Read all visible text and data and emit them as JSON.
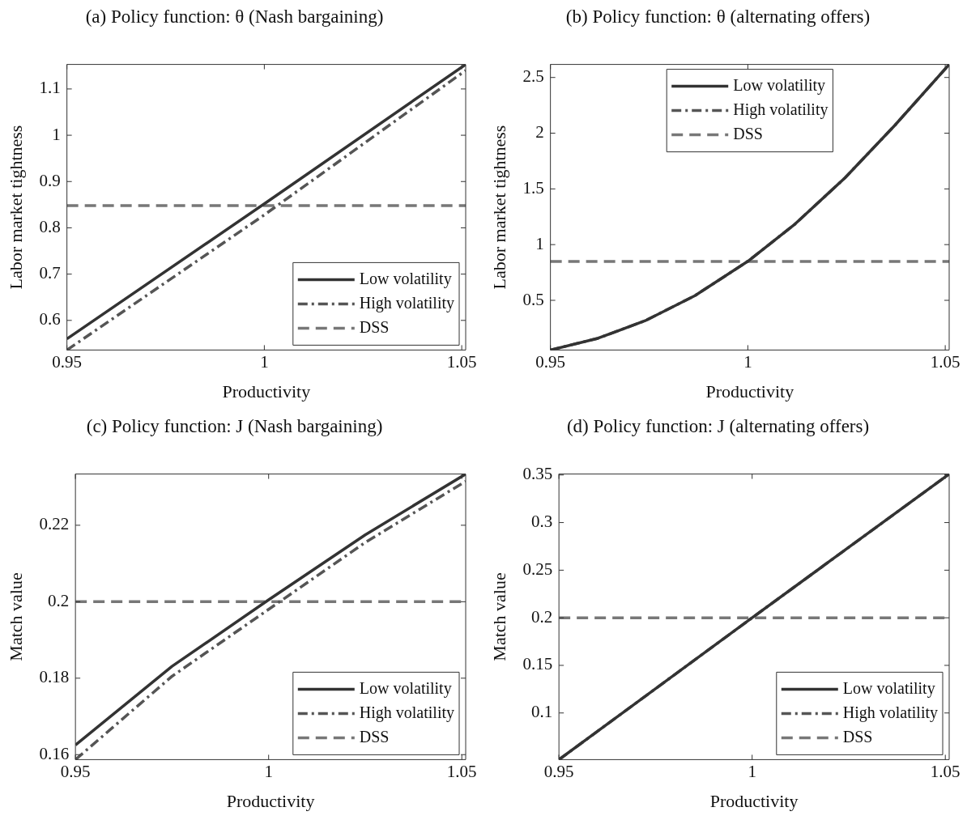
{
  "chart_data": [
    {
      "type": "line",
      "title": "(a) Policy function: θ (Nash bargaining)",
      "xlabel": "Productivity",
      "ylabel": "Labor market tightness",
      "xlim": [
        0.95,
        1.051
      ],
      "xticks": [
        0.95,
        1,
        1.05
      ],
      "ylim": [
        0.536,
        1.153
      ],
      "yticks": [
        0.6,
        0.7,
        0.8,
        0.9,
        1,
        1.1
      ],
      "legend": "bottom right",
      "grid": false,
      "series": [
        {
          "name": "Low volatility",
          "color": "#333333",
          "line_style": "solid",
          "x": [
            0.95,
            1,
            1.051
          ],
          "values": [
            0.56,
            0.852,
            1.153
          ]
        },
        {
          "name": "High volatility",
          "color": "#555555",
          "line_style": "dashdot",
          "x": [
            0.95,
            1,
            1.051
          ],
          "values": [
            0.536,
            0.828,
            1.14
          ]
        },
        {
          "name": "DSS",
          "color": "#777777",
          "line_style": "dashed",
          "x": [
            0.95,
            1.051
          ],
          "values": [
            0.848,
            0.848
          ]
        }
      ]
    },
    {
      "type": "line",
      "title": "(b) Policy function: θ (alternating offers)",
      "xlabel": "Productivity",
      "ylabel": "Labor market tightness",
      "xlim": [
        0.95,
        1.051
      ],
      "xticks": [
        0.95,
        1,
        1.05
      ],
      "ylim": [
        0.054,
        2.617
      ],
      "yticks": [
        0.5,
        1,
        1.5,
        2,
        2.5
      ],
      "legend": "top",
      "grid": false,
      "series": [
        {
          "name": "Low volatility",
          "color": "#333333",
          "line_style": "solid",
          "x": [
            0.95,
            0.962,
            0.974,
            0.9866,
            1,
            1.012,
            1.0246,
            1.0372,
            1.051
          ],
          "values": [
            0.054,
            0.159,
            0.317,
            0.542,
            0.85,
            1.186,
            1.599,
            2.069,
            2.617
          ]
        },
        {
          "name": "High volatility",
          "color": "#555555",
          "line_style": "dashdot",
          "x": [
            0.95,
            0.962,
            0.974,
            0.9866,
            1,
            1.012,
            1.0246,
            1.0372,
            1.051
          ],
          "values": [
            0.054,
            0.159,
            0.317,
            0.542,
            0.85,
            1.186,
            1.599,
            2.069,
            2.617
          ]
        },
        {
          "name": "DSS",
          "color": "#777777",
          "line_style": "dashed",
          "x": [
            0.95,
            1.051
          ],
          "values": [
            0.848,
            0.848
          ]
        }
      ]
    },
    {
      "type": "line",
      "title": "(c) Policy function: J (Nash bargaining)",
      "xlabel": "Productivity",
      "ylabel": "Match value",
      "xlim": [
        0.95,
        1.051
      ],
      "xticks": [
        0.95,
        1,
        1.05
      ],
      "ylim": [
        0.1587,
        0.2334
      ],
      "yticks": [
        0.16,
        0.18,
        0.2,
        0.22
      ],
      "legend": "bottom right",
      "grid": false,
      "series": [
        {
          "name": "Low volatility",
          "color": "#333333",
          "line_style": "solid",
          "x": [
            0.95,
            0.975,
            1,
            1.025,
            1.051
          ],
          "values": [
            0.1625,
            0.1831,
            0.2005,
            0.2175,
            0.2334
          ]
        },
        {
          "name": "High volatility",
          "color": "#555555",
          "line_style": "dashdot",
          "x": [
            0.95,
            0.975,
            1,
            1.025,
            1.051
          ],
          "values": [
            0.1587,
            0.1805,
            0.198,
            0.2155,
            0.2315
          ]
        },
        {
          "name": "DSS",
          "color": "#777777",
          "line_style": "dashed",
          "x": [
            0.95,
            1.051
          ],
          "values": [
            0.2,
            0.2
          ]
        }
      ]
    },
    {
      "type": "line",
      "title": "(d) Policy function: J (alternating offers)",
      "xlabel": "Productivity",
      "ylabel": "Match value",
      "xlim": [
        0.95,
        1.051
      ],
      "xticks": [
        0.95,
        1,
        1.05
      ],
      "ylim": [
        0.051,
        0.351
      ],
      "yticks": [
        0.1,
        0.15,
        0.2,
        0.25,
        0.3,
        0.35
      ],
      "legend": "bottom right",
      "grid": false,
      "series": [
        {
          "name": "Low volatility",
          "color": "#333333",
          "line_style": "solid",
          "x": [
            0.95,
            1,
            1.051
          ],
          "values": [
            0.051,
            0.2,
            0.351
          ]
        },
        {
          "name": "High volatility",
          "color": "#555555",
          "line_style": "dashdot",
          "x": [
            0.95,
            1,
            1.051
          ],
          "values": [
            0.051,
            0.2,
            0.351
          ]
        },
        {
          "name": "DSS",
          "color": "#777777",
          "line_style": "dashed",
          "x": [
            0.95,
            1.051
          ],
          "values": [
            0.2,
            0.2
          ]
        }
      ]
    }
  ]
}
